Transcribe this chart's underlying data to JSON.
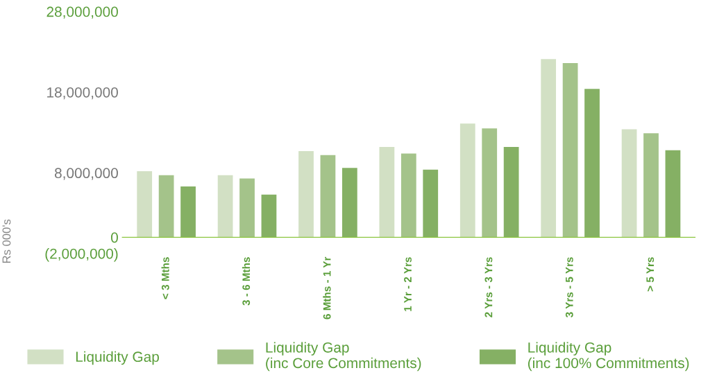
{
  "chart_data": {
    "type": "bar",
    "ylabel": "Rs 000's",
    "categories": [
      "< 3 Mths",
      "3 - 6 Mths",
      "6 Mths - 1 Yr",
      "1 Yr - 2 Yrs",
      "2 Yrs - 3 Yrs",
      "3 Yrs - 5 Yrs",
      "> 5 Yrs"
    ],
    "series": [
      {
        "name": "Liquidity Gap",
        "color": "#d2e0c4",
        "values": [
          8200000,
          7700000,
          10700000,
          11200000,
          14100000,
          22100000,
          13400000
        ]
      },
      {
        "name": "Liquidity Gap\n(inc Core Commitments)",
        "color": "#a4c38a",
        "values": [
          7700000,
          7300000,
          10200000,
          10400000,
          13500000,
          21600000,
          12900000
        ]
      },
      {
        "name": "Liquidity Gap\n(inc 100% Commitments)",
        "color": "#85b064",
        "values": [
          6300000,
          5300000,
          8600000,
          8400000,
          11200000,
          18400000,
          10800000
        ]
      }
    ],
    "ylim": [
      -2000000,
      28000000
    ],
    "yticks": [
      {
        "value": -2000000,
        "label": "(2,000,000)"
      },
      {
        "value": 0,
        "label": "0"
      },
      {
        "value": 8000000,
        "label": "8,000,000"
      },
      {
        "value": 18000000,
        "label": "18,000,000"
      },
      {
        "value": 28000000,
        "label": "28,000,000"
      }
    ],
    "grid": false,
    "legend": "bottom"
  }
}
